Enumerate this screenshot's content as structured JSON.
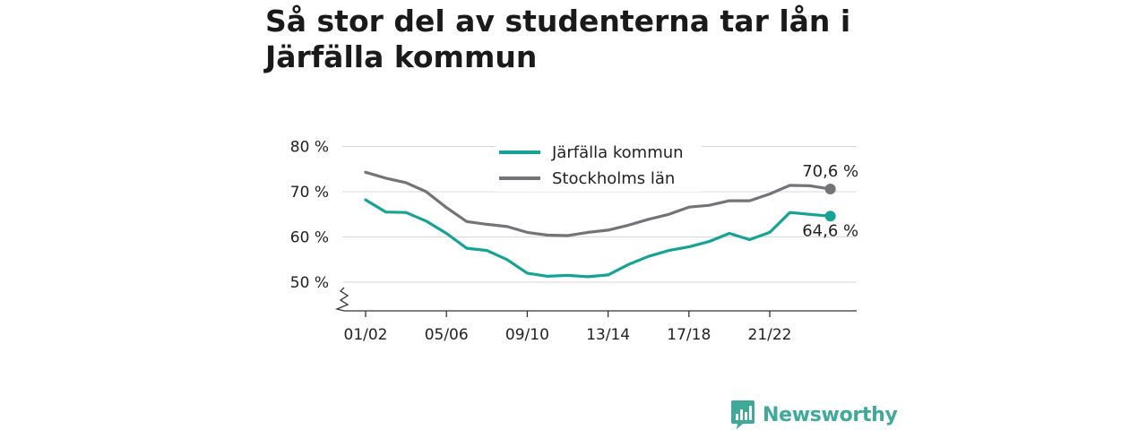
{
  "title": "Så stor del av studenterna tar lån i Järfälla kommun",
  "brand": {
    "name": "Newsworthy",
    "color": "#3fa99a",
    "icon": "bar-chart-logo-icon"
  },
  "chart_data": {
    "type": "line",
    "title": "Så stor del av studenterna tar lån i Järfälla kommun",
    "xlabel": "",
    "ylabel": "",
    "x_tick_labels": [
      "01/02",
      "05/06",
      "09/10",
      "13/14",
      "17/18",
      "21/22"
    ],
    "x_tick_positions": [
      0,
      4,
      8,
      12,
      16,
      20
    ],
    "y_ticks": [
      50,
      60,
      70,
      80
    ],
    "y_tick_labels": [
      "50 %",
      "60 %",
      "70 %",
      "80 %"
    ],
    "ylim": [
      46,
      80
    ],
    "y_axis_break": true,
    "grid": true,
    "legend_position": "top-center",
    "series": [
      {
        "name": "Järfälla kommun",
        "color": "#16a394",
        "values": [
          68.2,
          65.5,
          65.4,
          63.5,
          60.8,
          57.5,
          57.0,
          55.0,
          52.0,
          51.3,
          51.5,
          51.2,
          51.6,
          53.9,
          55.7,
          57.0,
          57.8,
          59.0,
          60.8,
          59.4,
          61.0,
          65.4,
          65.0,
          64.6
        ],
        "end_label": "64,6 %"
      },
      {
        "name": "Stockholms län",
        "color": "#737379",
        "values": [
          74.3,
          73.0,
          72.0,
          70.0,
          66.5,
          63.4,
          62.8,
          62.3,
          61.0,
          60.4,
          60.3,
          61.0,
          61.5,
          62.6,
          63.9,
          65.0,
          66.6,
          67.0,
          68.0,
          68.0,
          69.5,
          71.4,
          71.3,
          70.6
        ],
        "end_label": "70,6 %"
      }
    ]
  }
}
